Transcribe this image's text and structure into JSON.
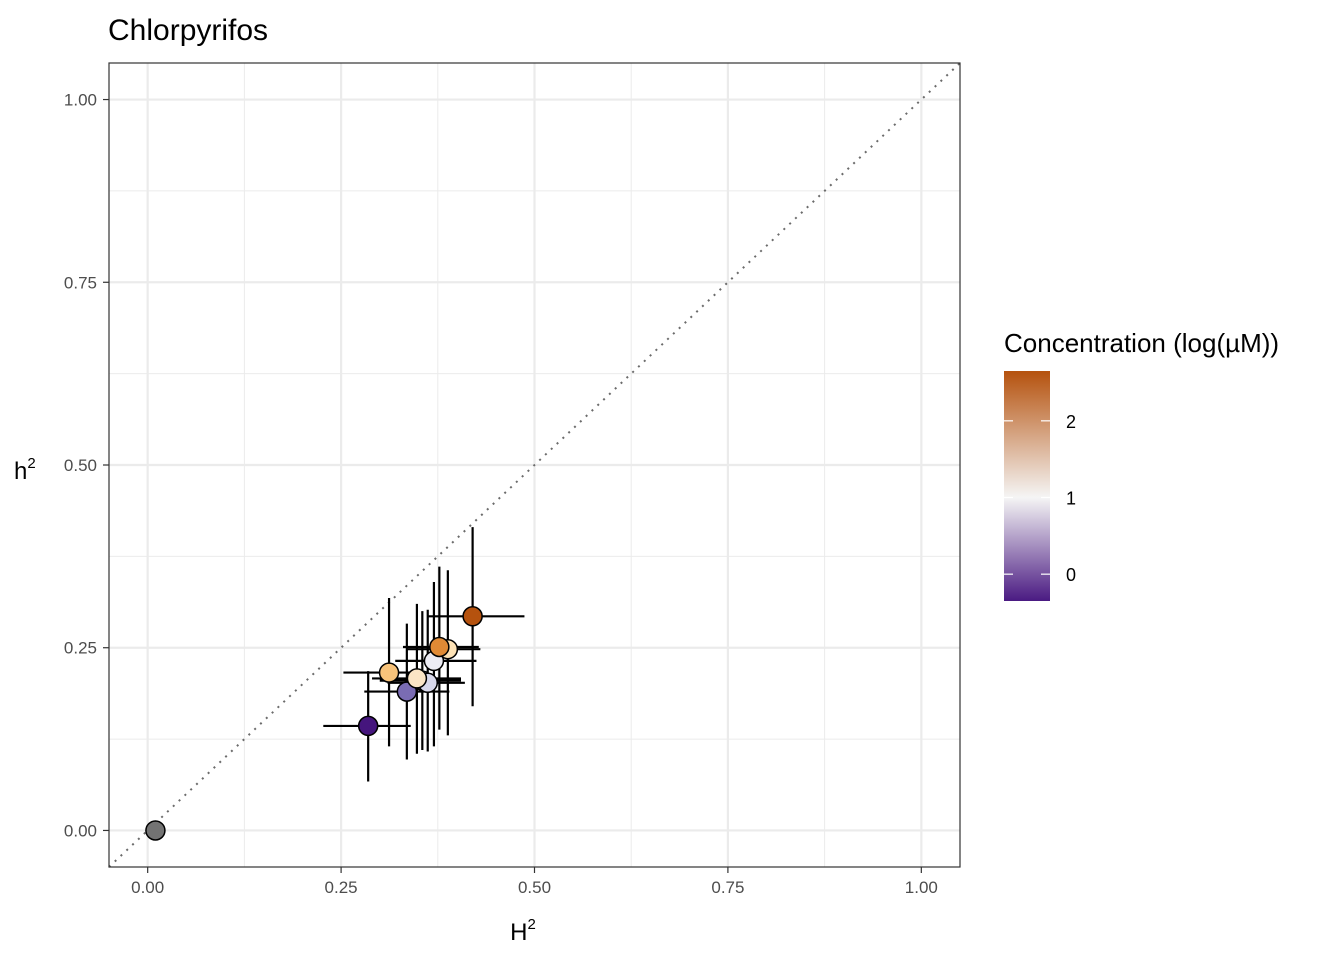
{
  "chart_data": {
    "type": "scatter",
    "title": "Chlorpyrifos",
    "xlabel": "H",
    "xlabel_sup": "2",
    "ylabel": "h",
    "ylabel_sup": "2",
    "xlim": [
      -0.05,
      1.05
    ],
    "ylim": [
      -0.05,
      1.05
    ],
    "x_ticks": [
      0.0,
      0.25,
      0.5,
      0.75,
      1.0
    ],
    "x_tick_labels": [
      "0.00",
      "0.25",
      "0.50",
      "0.75",
      "1.00"
    ],
    "y_ticks": [
      0.0,
      0.25,
      0.5,
      0.75,
      1.0
    ],
    "y_tick_labels": [
      "0.00",
      "0.25",
      "0.50",
      "0.75",
      "1.00"
    ],
    "grid": true,
    "reference_line": "y = x (dotted)",
    "legend": {
      "title": "Concentration (log(µM))",
      "position": "right",
      "range": [
        -0.35,
        2.65
      ],
      "ticks": [
        0,
        1,
        2
      ],
      "tick_labels": [
        "0",
        "1",
        "2"
      ],
      "color_low": "#4a1a82",
      "color_mid": "#f5f5f5",
      "color_high": "#b5520e"
    },
    "points": [
      {
        "x": 0.01,
        "y": 0.0,
        "x_err": [
          0.01,
          0.01
        ],
        "y_err": [
          0.0,
          0.0
        ],
        "concentration": null,
        "color": "#737373"
      },
      {
        "x": 0.285,
        "y": 0.143,
        "x_err": [
          0.227,
          0.34
        ],
        "y_err": [
          0.067,
          0.218
        ],
        "concentration": -0.3,
        "color": "#45157d"
      },
      {
        "x": 0.335,
        "y": 0.19,
        "x_err": [
          0.28,
          0.39
        ],
        "y_err": [
          0.097,
          0.283
        ],
        "concentration": 0.3,
        "color": "#7a6cb3"
      },
      {
        "x": 0.355,
        "y": 0.205,
        "x_err": [
          0.3,
          0.405
        ],
        "y_err": [
          0.11,
          0.3
        ],
        "concentration": 0.6,
        "color": "#b5b0d6"
      },
      {
        "x": 0.362,
        "y": 0.202,
        "x_err": [
          0.31,
          0.41
        ],
        "y_err": [
          0.108,
          0.302
        ],
        "concentration": 0.8,
        "color": "#d9d9eb"
      },
      {
        "x": 0.37,
        "y": 0.232,
        "x_err": [
          0.32,
          0.425
        ],
        "y_err": [
          0.115,
          0.34
        ],
        "concentration": 1.0,
        "color": "#ececf4"
      },
      {
        "x": 0.312,
        "y": 0.216,
        "x_err": [
          0.253,
          0.36
        ],
        "y_err": [
          0.115,
          0.318
        ],
        "concentration": 1.8,
        "color": "#f8c37a"
      },
      {
        "x": 0.348,
        "y": 0.208,
        "x_err": [
          0.29,
          0.405
        ],
        "y_err": [
          0.105,
          0.31
        ],
        "concentration": 1.5,
        "color": "#fbe5c5"
      },
      {
        "x": 0.388,
        "y": 0.248,
        "x_err": [
          0.335,
          0.43
        ],
        "y_err": [
          0.13,
          0.356
        ],
        "concentration": 1.6,
        "color": "#fde2b6"
      },
      {
        "x": 0.377,
        "y": 0.251,
        "x_err": [
          0.33,
          0.428
        ],
        "y_err": [
          0.138,
          0.361
        ],
        "concentration": 2.2,
        "color": "#e08a35"
      },
      {
        "x": 0.42,
        "y": 0.293,
        "x_err": [
          0.363,
          0.487
        ],
        "y_err": [
          0.17,
          0.415
        ],
        "concentration": 2.6,
        "color": "#b5520e"
      }
    ]
  }
}
